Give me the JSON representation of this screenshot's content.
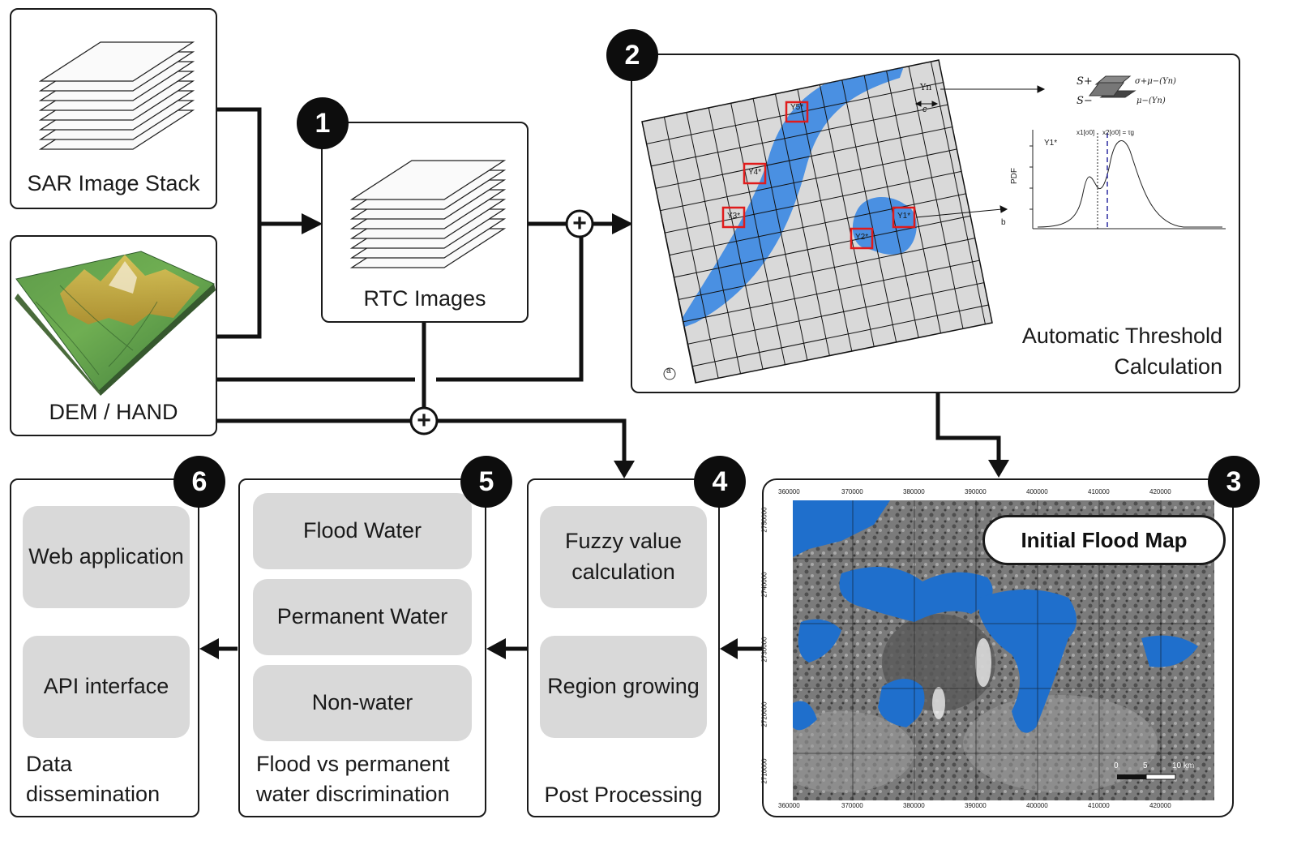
{
  "inputs": {
    "sar_stack": "SAR Image Stack",
    "dem": "DEM / HAND"
  },
  "stage1": {
    "number": "1",
    "label": "RTC Images"
  },
  "stage2": {
    "number": "2",
    "label_line1": "Automatic Threshold",
    "label_line2": "Calculation",
    "tiles": [
      "Y5*",
      "Y4*",
      "Y3*",
      "Y2*",
      "Y1*"
    ],
    "tile_label_n": "Yn",
    "tile_size": "c",
    "panel_a": "a",
    "panel_b": "b",
    "pdf_axis": "PDF",
    "pdf_series": "Y1*",
    "pdf_x1": "x1[σ0]",
    "pdf_x2": "x2[σ0] = τg",
    "s_plus": "S+",
    "s_minus": "S−",
    "sigma": "σ+μ−(Yn)",
    "mu": "μ−(Yn)"
  },
  "stage3": {
    "number": "3",
    "label": "Initial Flood Map",
    "x_ticks": [
      "360000",
      "370000",
      "380000",
      "390000",
      "400000",
      "410000",
      "420000"
    ],
    "y_ticks": [
      "2750000",
      "2740000",
      "2730000",
      "2720000",
      "2710000"
    ],
    "scale": [
      "0",
      "5",
      "10 km"
    ]
  },
  "stage4": {
    "number": "4",
    "items": [
      "Fuzzy value calculation",
      "Region growing"
    ],
    "label": "Post Processing"
  },
  "stage5": {
    "number": "5",
    "items": [
      "Flood Water",
      "Permanent Water",
      "Non-water"
    ],
    "label_line1": "Flood vs permanent",
    "label_line2": "water discrimination"
  },
  "stage6": {
    "number": "6",
    "items": [
      "Web application",
      "API interface"
    ],
    "label_line1": "Data",
    "label_line2": "dissemination"
  },
  "combine_symbol": "+",
  "colors": {
    "water": "#1f6fcc",
    "river": "#4a90e2",
    "badge": "#0d0d0d",
    "pill": "#d9d9d9"
  }
}
